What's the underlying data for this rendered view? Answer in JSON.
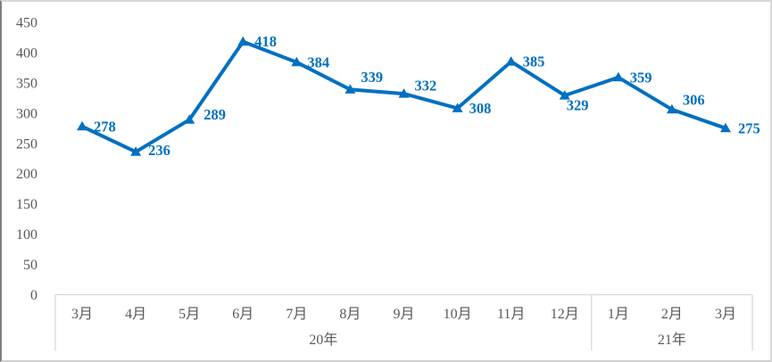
{
  "chart_data": {
    "type": "line",
    "title": "",
    "xlabel": "",
    "ylabel": "",
    "categories": [
      "3月",
      "4月",
      "5月",
      "6月",
      "7月",
      "8月",
      "9月",
      "10月",
      "11月",
      "12月",
      "1月",
      "2月",
      "3月"
    ],
    "values": [
      278,
      236,
      289,
      418,
      384,
      339,
      332,
      308,
      385,
      329,
      359,
      306,
      275
    ],
    "data_labels": [
      "278",
      "236",
      "289",
      "418",
      "384",
      "339",
      "332",
      "308",
      "385",
      "329",
      "359",
      "306",
      "275"
    ],
    "year_groups": [
      {
        "label": "20年",
        "start_index": 0,
        "end_index": 9
      },
      {
        "label": "21年",
        "start_index": 10,
        "end_index": 12
      }
    ],
    "ylim": [
      0,
      450
    ],
    "ytick_step": 50,
    "yticks": [
      "0",
      "50",
      "100",
      "150",
      "200",
      "250",
      "300",
      "350",
      "400",
      "450"
    ],
    "grid": false,
    "legend": false,
    "marker": "triangle-up",
    "colors": {
      "line": "#0070C0",
      "data_label": "#0070C0",
      "axis_line": "#d9d9d9",
      "tick_label": "#595959"
    },
    "label_dx": [
      13,
      14,
      16,
      13,
      12,
      12,
      12,
      13,
      13,
      2,
      13,
      12,
      14
    ],
    "label_dy": [
      0,
      -2,
      -6,
      0,
      0,
      -14,
      -9,
      0,
      0,
      11,
      0,
      -11,
      0
    ]
  }
}
